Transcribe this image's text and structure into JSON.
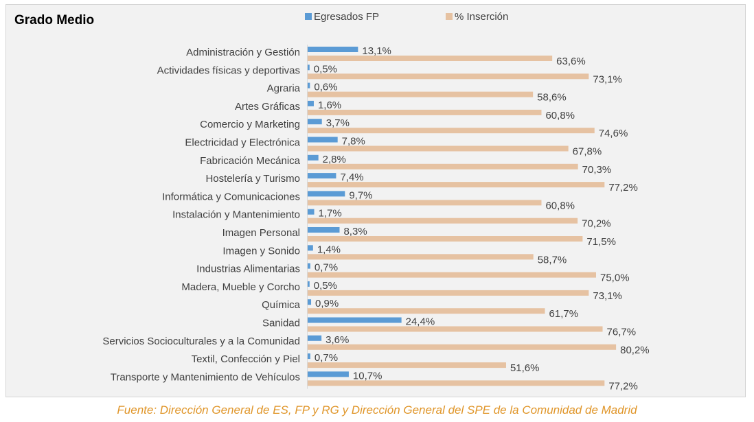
{
  "chart_data": {
    "type": "bar",
    "orientation": "horizontal",
    "title": "Grado Medio",
    "legend_position": "top",
    "grid": false,
    "xlim": [
      0,
      100
    ],
    "value_suffix": "%",
    "categories": [
      "Administración y Gestión",
      "Actividades físicas y deportivas",
      "Agraria",
      "Artes Gráficas",
      "Comercio y Marketing",
      "Electricidad y Electrónica",
      "Fabricación Mecánica",
      "Hostelería y Turismo",
      "Informática y Comunicaciones",
      "Instalación y Mantenimiento",
      "Imagen Personal",
      "Imagen y Sonido",
      "Industrias Alimentarias",
      "Madera, Mueble y Corcho",
      "Química",
      "Sanidad",
      "Servicios Socioculturales y a la Comunidad",
      "Textil, Confección y Piel",
      "Transporte y Mantenimiento de Vehículos"
    ],
    "series": [
      {
        "name": "Egresados FP",
        "color": "#5b9bd5",
        "values": [
          13.1,
          0.5,
          0.6,
          1.6,
          3.7,
          7.8,
          2.8,
          7.4,
          9.7,
          1.7,
          8.3,
          1.4,
          0.7,
          0.5,
          0.9,
          24.4,
          3.6,
          0.7,
          10.7
        ],
        "labels": [
          "13,1%",
          "0,5%",
          "0,6%",
          "1,6%",
          "3,7%",
          "7,8%",
          "2,8%",
          "7,4%",
          "9,7%",
          "1,7%",
          "8,3%",
          "1,4%",
          "0,7%",
          "0,5%",
          "0,9%",
          "24,4%",
          "3,6%",
          "0,7%",
          "10,7%"
        ]
      },
      {
        "name": "% Inserción",
        "color": "#e6c2a2",
        "values": [
          63.6,
          73.1,
          58.6,
          60.8,
          74.6,
          67.8,
          70.3,
          77.2,
          60.8,
          70.2,
          71.5,
          58.7,
          75.0,
          73.1,
          61.7,
          76.7,
          80.2,
          51.6,
          77.2
        ],
        "labels": [
          "63,6%",
          "73,1%",
          "58,6%",
          "60,8%",
          "74,6%",
          "67,8%",
          "70,3%",
          "77,2%",
          "60,8%",
          "70,2%",
          "71,5%",
          "58,7%",
          "75,0%",
          "73,1%",
          "61,7%",
          "76,7%",
          "80,2%",
          "51,6%",
          "77,2%"
        ]
      }
    ]
  },
  "source": "Fuente: Dirección General de ES, FP y RG y Dirección General del SPE de la Comunidad de Madrid"
}
